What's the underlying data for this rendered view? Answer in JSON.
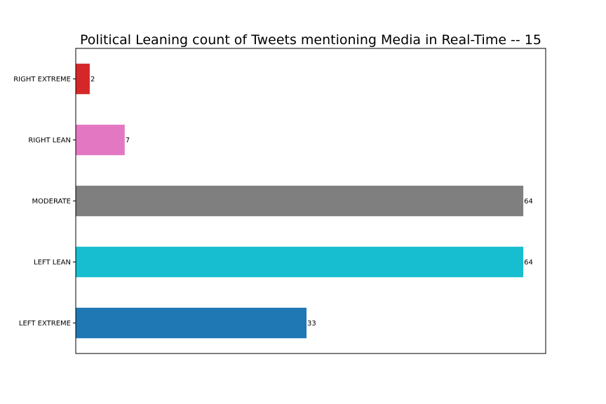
{
  "chart_data": {
    "type": "bar",
    "orientation": "horizontal",
    "title": "Political Leaning count of Tweets mentioning Media in Real-Time -- 15",
    "xlabel": "",
    "ylabel": "",
    "categories": [
      "RIGHT EXTREME",
      "RIGHT LEAN",
      "MODERATE",
      "LEFT LEAN",
      "LEFT EXTREME"
    ],
    "values": [
      2,
      7,
      64,
      64,
      33
    ],
    "colors": [
      "#d62728",
      "#e377c2",
      "#7f7f7f",
      "#17becf",
      "#1f77b4"
    ],
    "xlim": [
      0,
      67.2
    ],
    "x_ticks_visible": false,
    "grid": false,
    "legend": "none"
  }
}
